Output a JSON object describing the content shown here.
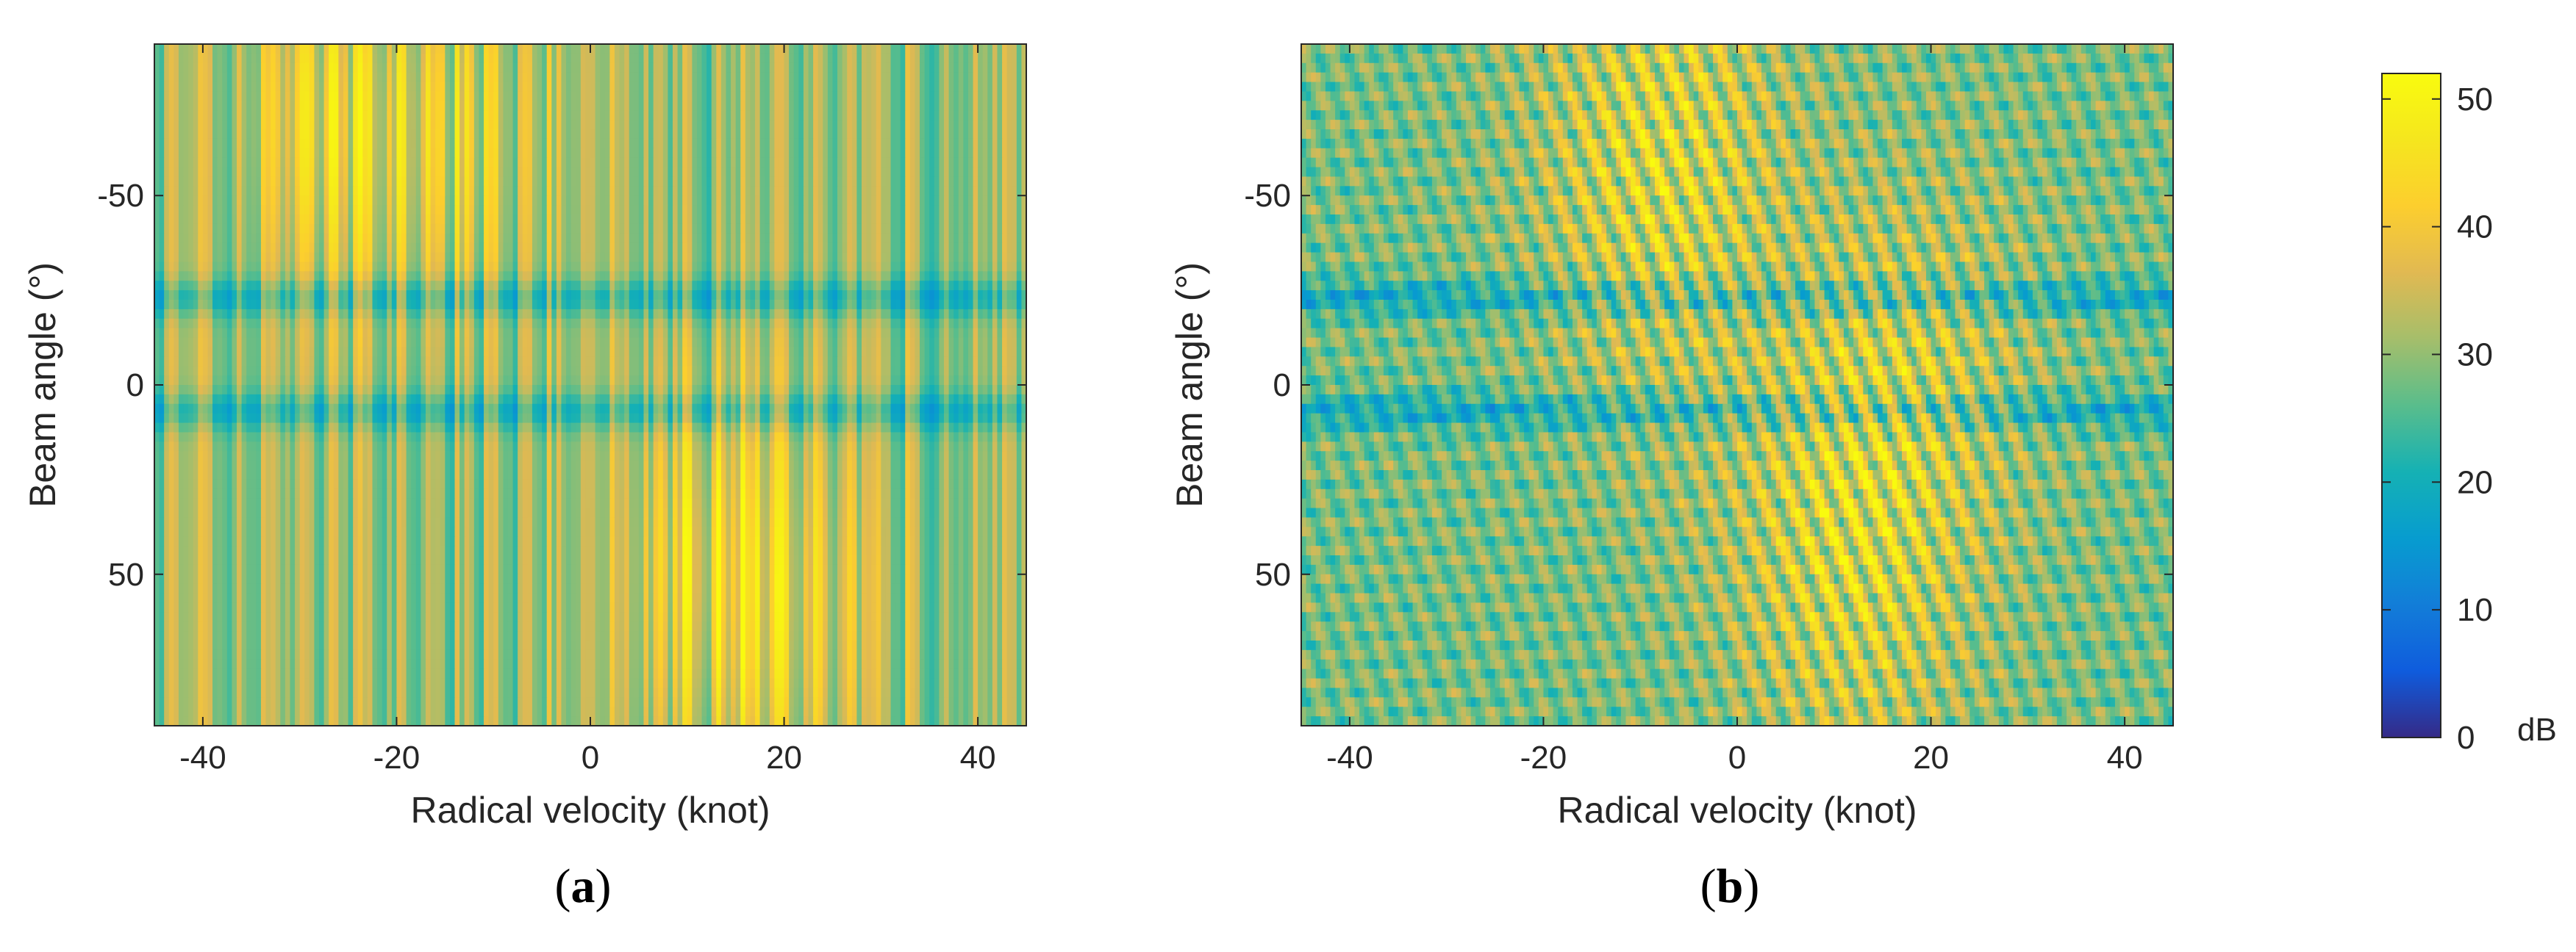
{
  "chart_data": [
    {
      "type": "heatmap",
      "panel_label": {
        "open": "(",
        "letter": "a",
        "close": ")"
      },
      "title": "",
      "xlabel": "Radical velocity (knot)",
      "ylabel": "Beam angle (°)",
      "xlim": [
        -45,
        45
      ],
      "ylim": [
        -90,
        90
      ],
      "x_reversed": false,
      "y_reversed": true,
      "xticks": [
        -40,
        -20,
        0,
        20,
        40
      ],
      "yticks": [
        -50,
        0,
        50
      ],
      "colormap": "parula",
      "clim": [
        0,
        52
      ],
      "pattern": "vertical-stripes",
      "hot_regions": [
        {
          "x_center": -17,
          "y_center": -65,
          "x_width": 10,
          "y_width": 45,
          "value": 45
        },
        {
          "x_center": -29,
          "y_center": -70,
          "x_width": 6,
          "y_width": 40,
          "value": 42
        },
        {
          "x_center": 19,
          "y_center": 55,
          "x_width": 10,
          "y_width": 50,
          "value": 45
        },
        {
          "x_center": 11,
          "y_center": 45,
          "x_width": 6,
          "y_width": 45,
          "value": 42
        }
      ],
      "null_bands_y": [
        -23,
        7
      ]
    },
    {
      "type": "heatmap",
      "panel_label": {
        "open": "(",
        "letter": "b",
        "close": ")"
      },
      "title": "",
      "xlabel": "Radical velocity (knot)",
      "ylabel": "Beam angle (°)",
      "xlim": [
        -45,
        45
      ],
      "ylim": [
        -90,
        90
      ],
      "x_reversed": false,
      "y_reversed": true,
      "xticks": [
        -40,
        -20,
        0,
        20,
        40
      ],
      "yticks": [
        -50,
        0,
        50
      ],
      "colormap": "parula",
      "clim": [
        0,
        52
      ],
      "pattern": "diagonal-stripes",
      "hot_regions": [
        {
          "x_center": -8,
          "y_center": -60,
          "x_width": 12,
          "y_width": 60,
          "value": 50
        },
        {
          "x_center": 12,
          "y_center": 40,
          "x_width": 12,
          "y_width": 60,
          "value": 50
        },
        {
          "x_center": 20,
          "y_center": -10,
          "x_width": 12,
          "y_width": 45,
          "value": 40
        }
      ],
      "null_bands_y": [
        -23,
        7
      ]
    }
  ],
  "colorbar": {
    "unit": "dB",
    "min": 0,
    "max": 52,
    "ticks": [
      0,
      10,
      20,
      30,
      40,
      50
    ]
  }
}
